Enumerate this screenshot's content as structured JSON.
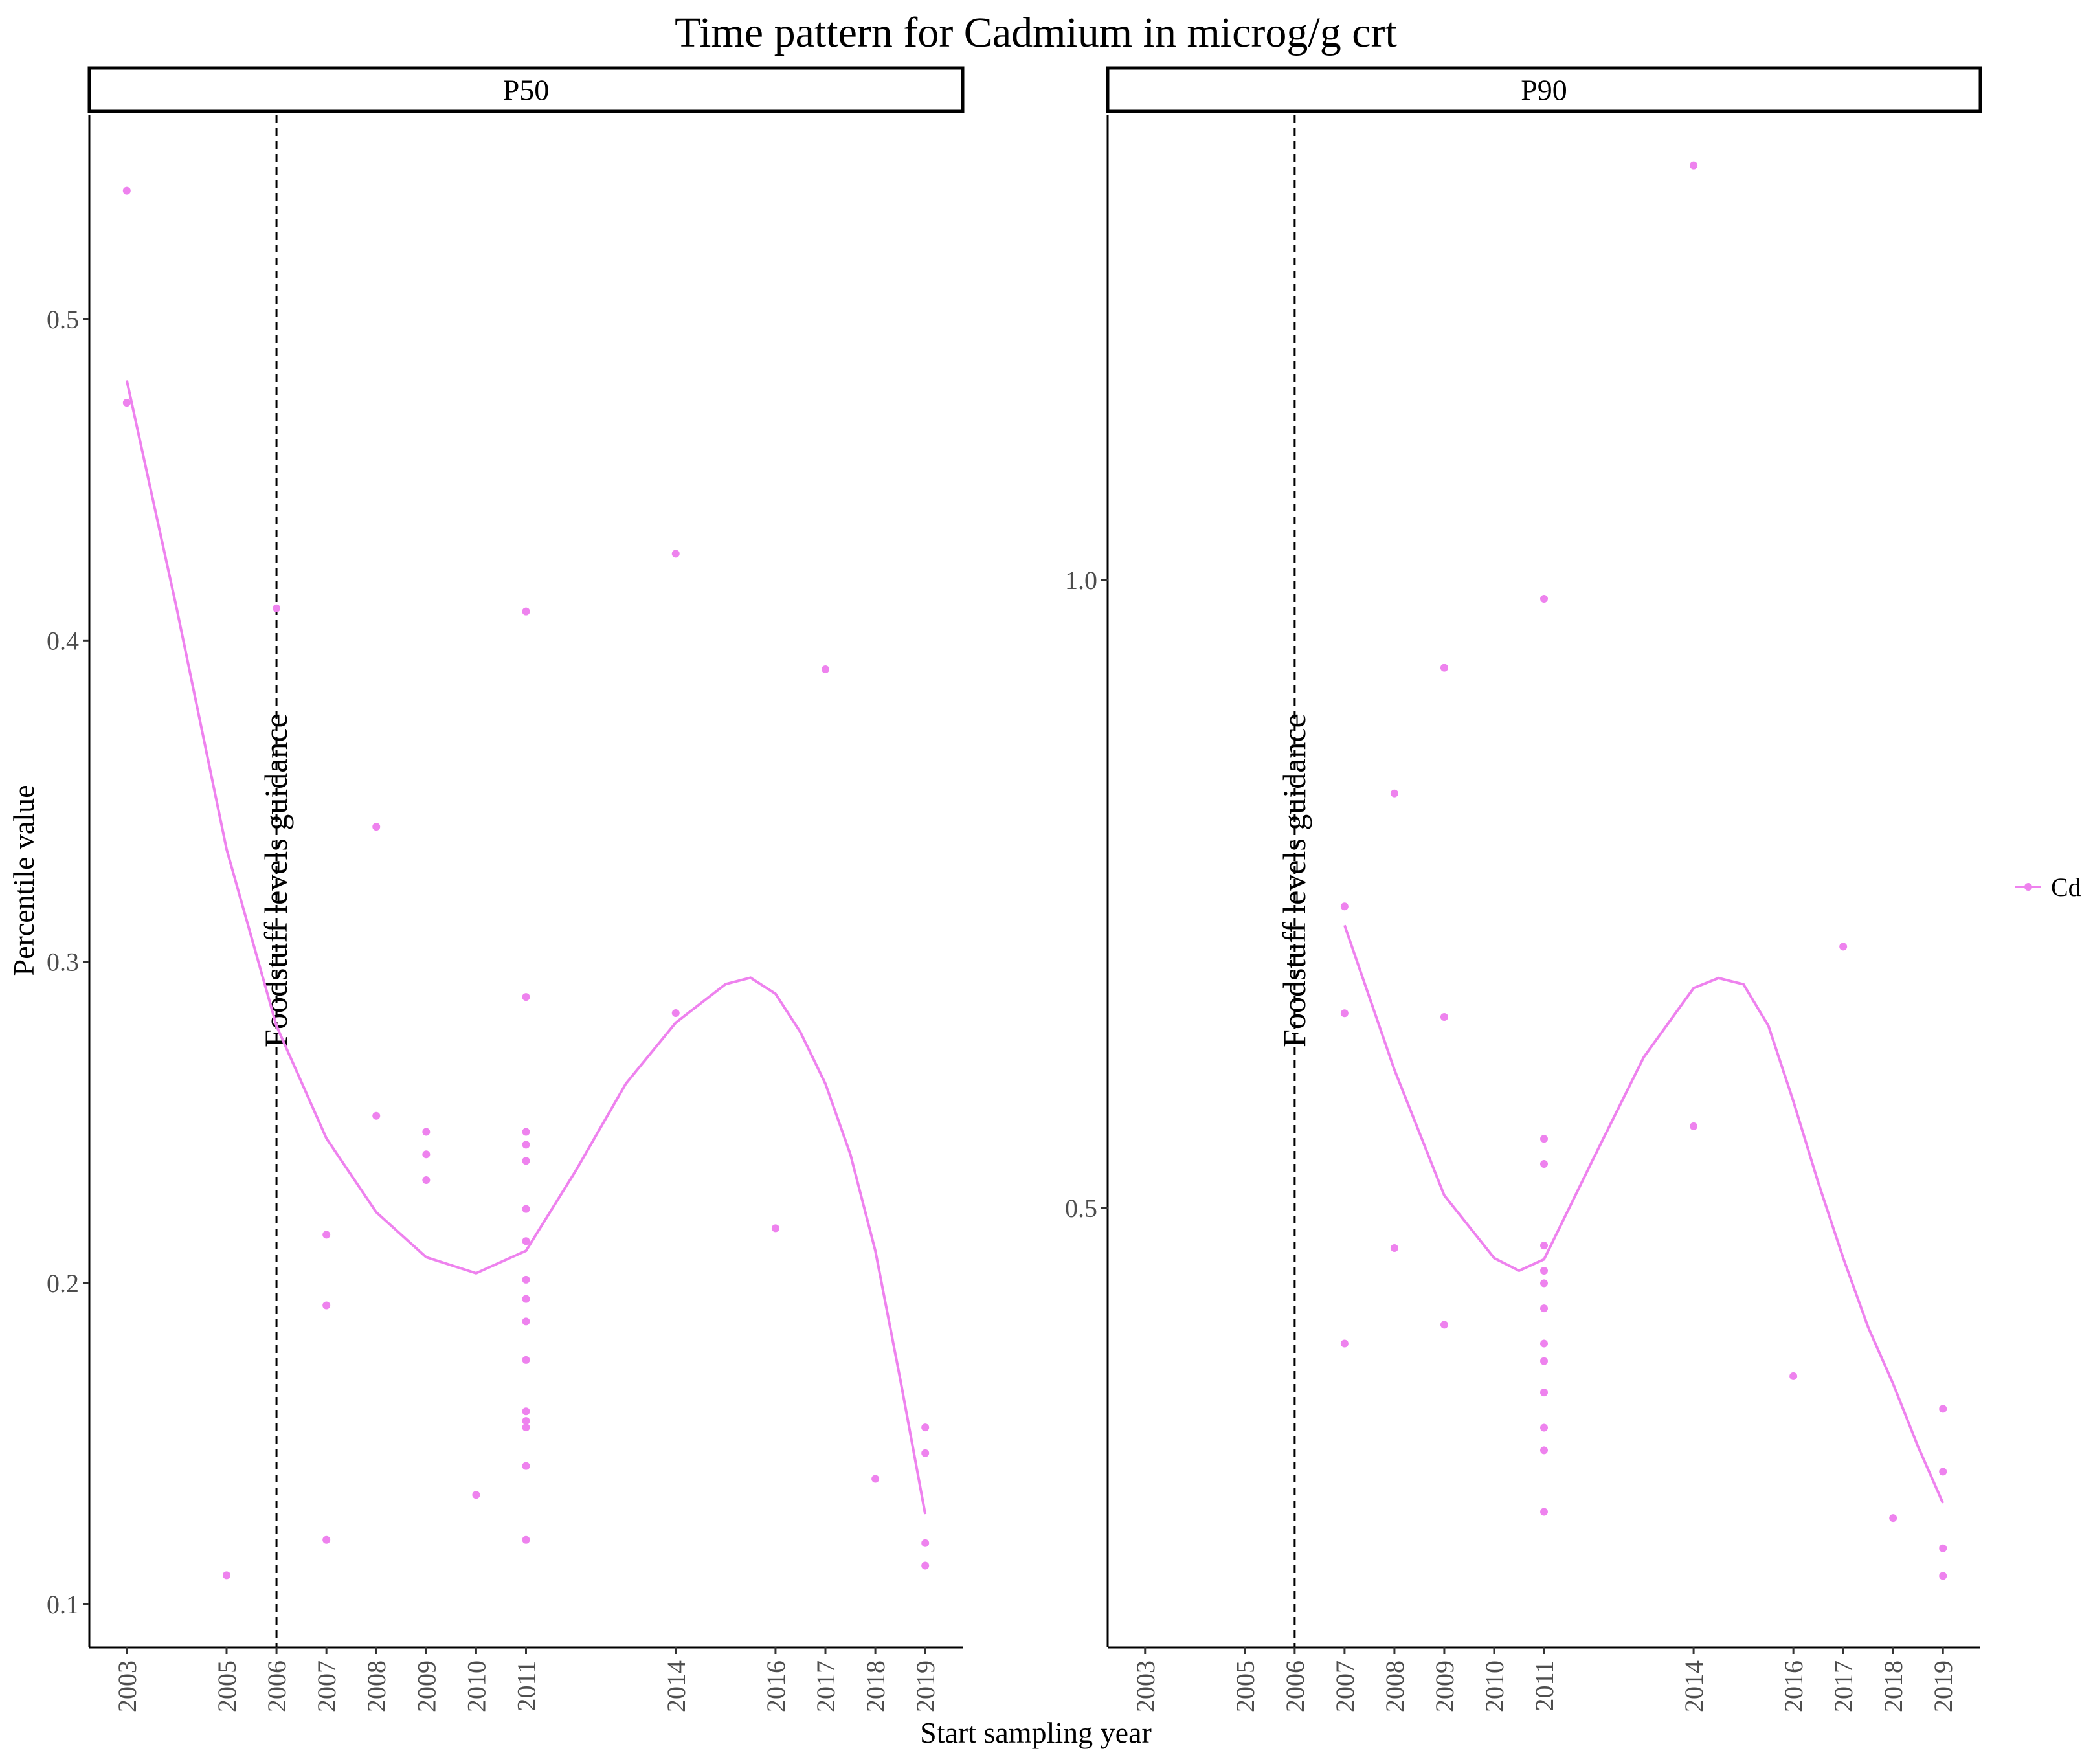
{
  "chart_data": {
    "type": "scatter",
    "title": "Time pattern for Cadmium in microg/g crt",
    "xlabel": "Start sampling year",
    "ylabel": "Percentile value",
    "x_ticks": [
      2003,
      2005,
      2006,
      2007,
      2008,
      2009,
      2010,
      2011,
      2014,
      2016,
      2017,
      2018,
      2019
    ],
    "legend": {
      "position": "right",
      "entries": [
        {
          "name": "Cd",
          "color": "#EE82EE"
        }
      ]
    },
    "reference_line": {
      "x": 2006,
      "label": "Foodstuff levels guidance",
      "style": "dashed"
    },
    "grid": false,
    "panels": [
      {
        "strip": "P50",
        "xlim": [
          2002.25,
          2019.75
        ],
        "ylim": [
          0.0865,
          0.5635
        ],
        "y_ticks": [
          0.1,
          0.2,
          0.3,
          0.4,
          0.5
        ],
        "y_tick_labels": [
          "0.1",
          "0.2",
          "0.3",
          "0.4",
          "0.5"
        ],
        "series": [
          {
            "name": "Cd",
            "color": "#EE82EE",
            "points": [
              [
                2003,
                0.54
              ],
              [
                2003,
                0.474
              ],
              [
                2005,
                0.109
              ],
              [
                2006,
                0.41
              ],
              [
                2007,
                0.215
              ],
              [
                2007,
                0.193
              ],
              [
                2007,
                0.12
              ],
              [
                2008,
                0.342
              ],
              [
                2008,
                0.252
              ],
              [
                2009,
                0.247
              ],
              [
                2009,
                0.24
              ],
              [
                2009,
                0.232
              ],
              [
                2010,
                0.134
              ],
              [
                2011,
                0.409
              ],
              [
                2011,
                0.289
              ],
              [
                2011,
                0.247
              ],
              [
                2011,
                0.243
              ],
              [
                2011,
                0.238
              ],
              [
                2011,
                0.223
              ],
              [
                2011,
                0.213
              ],
              [
                2011,
                0.201
              ],
              [
                2011,
                0.195
              ],
              [
                2011,
                0.188
              ],
              [
                2011,
                0.176
              ],
              [
                2011,
                0.16
              ],
              [
                2011,
                0.157
              ],
              [
                2011,
                0.155
              ],
              [
                2011,
                0.143
              ],
              [
                2011,
                0.12
              ],
              [
                2014,
                0.427
              ],
              [
                2014,
                0.284
              ],
              [
                2016,
                0.217
              ],
              [
                2017,
                0.391
              ],
              [
                2018,
                0.139
              ],
              [
                2019,
                0.155
              ],
              [
                2019,
                0.147
              ],
              [
                2019,
                0.119
              ],
              [
                2019,
                0.112
              ]
            ],
            "smooth": [
              [
                2003,
                0.481
              ],
              [
                2004,
                0.41
              ],
              [
                2005,
                0.335
              ],
              [
                2006,
                0.28
              ],
              [
                2007,
                0.245
              ],
              [
                2008,
                0.222
              ],
              [
                2009,
                0.208
              ],
              [
                2010,
                0.203
              ],
              [
                2011,
                0.21
              ],
              [
                2012,
                0.235
              ],
              [
                2013,
                0.262
              ],
              [
                2014,
                0.281
              ],
              [
                2015,
                0.293
              ],
              [
                2015.5,
                0.295
              ],
              [
                2016,
                0.29
              ],
              [
                2016.5,
                0.278
              ],
              [
                2017,
                0.262
              ],
              [
                2017.5,
                0.24
              ],
              [
                2018,
                0.21
              ],
              [
                2018.5,
                0.17
              ],
              [
                2019,
                0.128
              ]
            ]
          }
        ]
      },
      {
        "strip": "P90",
        "xlim": [
          2002.25,
          2019.75
        ],
        "ylim": [
          0.15,
          1.37
        ],
        "y_ticks": [
          0.5,
          1.0
        ],
        "y_tick_labels": [
          "0.5",
          "1.0"
        ],
        "series": [
          {
            "name": "Cd",
            "color": "#EE82EE",
            "points": [
              [
                2007,
                0.74
              ],
              [
                2007,
                0.655
              ],
              [
                2007,
                0.392
              ],
              [
                2008,
                0.83
              ],
              [
                2008,
                0.468
              ],
              [
                2009,
                0.93
              ],
              [
                2009,
                0.652
              ],
              [
                2009,
                0.407
              ],
              [
                2011,
                0.985
              ],
              [
                2011,
                0.555
              ],
              [
                2011,
                0.535
              ],
              [
                2011,
                0.47
              ],
              [
                2011,
                0.45
              ],
              [
                2011,
                0.44
              ],
              [
                2011,
                0.42
              ],
              [
                2011,
                0.392
              ],
              [
                2011,
                0.378
              ],
              [
                2011,
                0.353
              ],
              [
                2011,
                0.325
              ],
              [
                2011,
                0.307
              ],
              [
                2011,
                0.258
              ],
              [
                2014,
                1.33
              ],
              [
                2014,
                0.565
              ],
              [
                2016,
                0.366
              ],
              [
                2017,
                0.708
              ],
              [
                2018,
                0.253
              ],
              [
                2019,
                0.34
              ],
              [
                2019,
                0.29
              ],
              [
                2019,
                0.229
              ],
              [
                2019,
                0.207
              ]
            ],
            "smooth": [
              [
                2007,
                0.725
              ],
              [
                2008,
                0.61
              ],
              [
                2009,
                0.51
              ],
              [
                2010,
                0.46
              ],
              [
                2010.5,
                0.45
              ],
              [
                2011,
                0.459
              ],
              [
                2012,
                0.54
              ],
              [
                2013,
                0.62
              ],
              [
                2014,
                0.675
              ],
              [
                2014.5,
                0.683
              ],
              [
                2015,
                0.678
              ],
              [
                2015.5,
                0.645
              ],
              [
                2016,
                0.585
              ],
              [
                2016.5,
                0.52
              ],
              [
                2017,
                0.46
              ],
              [
                2017.5,
                0.405
              ],
              [
                2018,
                0.36
              ],
              [
                2018.5,
                0.31
              ],
              [
                2019,
                0.265
              ]
            ]
          }
        ]
      }
    ]
  }
}
